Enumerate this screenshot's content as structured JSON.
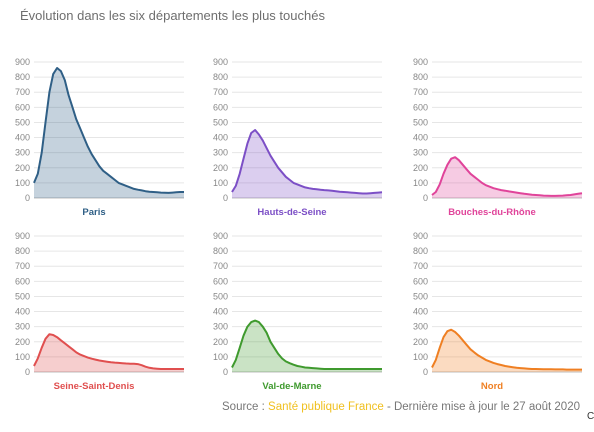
{
  "title": "Évolution dans les six départements les plus touchés",
  "source": {
    "prefix": "Source : ",
    "link_text": "Santé publique France",
    "suffix": " - Dernière mise à jour le 27 août 2020"
  },
  "corner_mark": "C",
  "colors": {
    "Paris": "#2f5f86",
    "Hauts-de-Seine": "#7c4fc6",
    "Bouches-du-Rhône": "#e0449a",
    "Seine-Saint-Denis": "#e04f4f",
    "Val-de-Marne": "#3f9a2e",
    "Nord": "#ef7f22",
    "source_link": "#f0c020"
  },
  "chart_data": [
    {
      "type": "area",
      "series": [
        {
          "name": "Paris",
          "values": [
            100,
            160,
            300,
            500,
            700,
            820,
            860,
            840,
            780,
            680,
            600,
            520,
            460,
            400,
            340,
            290,
            250,
            210,
            180,
            160,
            140,
            120,
            100,
            90,
            80,
            70,
            60,
            55,
            50,
            45,
            42,
            40,
            38,
            36,
            35,
            34,
            36,
            38,
            40,
            40
          ]
        }
      ],
      "ylim": [
        0,
        900
      ],
      "yticks": [
        0,
        100,
        200,
        300,
        400,
        500,
        600,
        700,
        800,
        900
      ]
    },
    {
      "type": "area",
      "series": [
        {
          "name": "Hauts-de-Seine",
          "values": [
            40,
            80,
            160,
            260,
            360,
            430,
            450,
            420,
            380,
            330,
            280,
            240,
            200,
            170,
            140,
            120,
            100,
            90,
            80,
            70,
            65,
            60,
            58,
            55,
            52,
            50,
            48,
            45,
            42,
            40,
            38,
            36,
            34,
            32,
            30,
            30,
            32,
            34,
            36,
            38
          ]
        }
      ],
      "ylim": [
        0,
        900
      ],
      "yticks": [
        0,
        100,
        200,
        300,
        400,
        500,
        600,
        700,
        800,
        900
      ]
    },
    {
      "type": "area",
      "series": [
        {
          "name": "Bouches-du-Rhône",
          "values": [
            20,
            40,
            90,
            160,
            220,
            260,
            270,
            250,
            220,
            190,
            160,
            140,
            120,
            100,
            85,
            75,
            65,
            58,
            52,
            48,
            44,
            40,
            36,
            32,
            28,
            25,
            22,
            20,
            18,
            16,
            15,
            14,
            14,
            15,
            16,
            18,
            20,
            24,
            28,
            32
          ]
        }
      ],
      "ylim": [
        0,
        900
      ],
      "yticks": [
        0,
        100,
        200,
        300,
        400,
        500,
        600,
        700,
        800,
        900
      ]
    },
    {
      "type": "area",
      "series": [
        {
          "name": "Seine-Saint-Denis",
          "values": [
            40,
            90,
            160,
            220,
            250,
            245,
            230,
            210,
            190,
            170,
            150,
            130,
            115,
            105,
            95,
            88,
            82,
            76,
            72,
            68,
            65,
            62,
            60,
            58,
            56,
            55,
            54,
            52,
            45,
            35,
            28,
            24,
            22,
            20,
            20,
            20,
            20,
            20,
            20,
            20
          ]
        }
      ],
      "ylim": [
        0,
        900
      ],
      "yticks": [
        0,
        100,
        200,
        300,
        400,
        500,
        600,
        700,
        800,
        900
      ]
    },
    {
      "type": "area",
      "series": [
        {
          "name": "Val-de-Marne",
          "values": [
            30,
            80,
            160,
            240,
            300,
            330,
            340,
            330,
            300,
            260,
            200,
            160,
            120,
            90,
            70,
            58,
            48,
            40,
            35,
            30,
            28,
            26,
            24,
            22,
            20,
            20,
            20,
            20,
            20,
            20,
            20,
            20,
            20,
            20,
            20,
            20,
            20,
            20,
            20,
            20
          ]
        }
      ],
      "ylim": [
        0,
        900
      ],
      "yticks": [
        0,
        100,
        200,
        300,
        400,
        500,
        600,
        700,
        800,
        900
      ]
    },
    {
      "type": "area",
      "series": [
        {
          "name": "Nord",
          "values": [
            30,
            80,
            160,
            230,
            270,
            280,
            265,
            240,
            210,
            180,
            150,
            130,
            110,
            95,
            80,
            70,
            60,
            52,
            46,
            40,
            36,
            32,
            28,
            26,
            24,
            22,
            20,
            20,
            19,
            18,
            18,
            18,
            17,
            17,
            17,
            16,
            16,
            16,
            16,
            16
          ]
        }
      ],
      "ylim": [
        0,
        900
      ],
      "yticks": [
        0,
        100,
        200,
        300,
        400,
        500,
        600,
        700,
        800,
        900
      ]
    }
  ]
}
